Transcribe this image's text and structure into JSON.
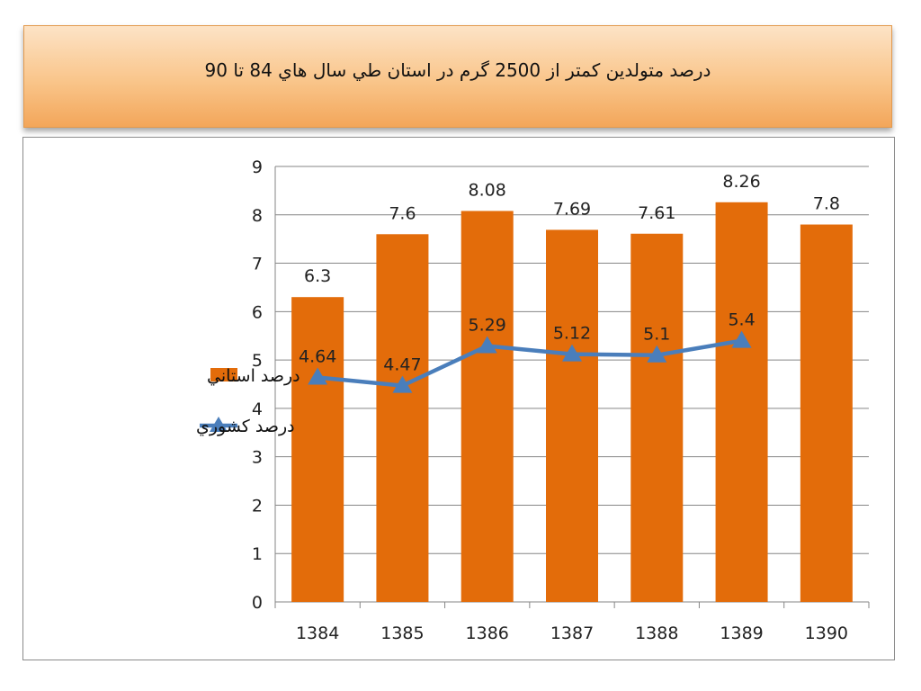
{
  "title": "درصد متولدين كمتر از 2500 گرم در استان طي سال هاي 84 تا 90",
  "colors": {
    "bar": "#e36c0a",
    "line": "#4a7ebb",
    "grid": "#868686",
    "axis": "#868686"
  },
  "chart_data": {
    "type": "bar",
    "categories": [
      "1384",
      "1385",
      "1386",
      "1387",
      "1388",
      "1389",
      "1390"
    ],
    "ylim": [
      0,
      9
    ],
    "yticks": [
      0,
      1,
      2,
      3,
      4,
      5,
      6,
      7,
      8,
      9
    ],
    "grid": true,
    "legend_position": "left",
    "series": [
      {
        "name": "درصد استاني",
        "type": "bar",
        "values": [
          6.3,
          7.6,
          8.08,
          7.69,
          7.61,
          8.26,
          7.8
        ],
        "labels": [
          "6.3",
          "7.6",
          "8.08",
          "7.69",
          "7.61",
          "8.26",
          "7.8"
        ]
      },
      {
        "name": "درصد كشوري",
        "type": "line",
        "marker": "triangle",
        "values": [
          4.64,
          4.47,
          5.29,
          5.12,
          5.1,
          5.4,
          null
        ],
        "labels": [
          "4.64",
          "4.47",
          "5.29",
          "5.12",
          "5.1",
          "5.4",
          null
        ]
      }
    ]
  }
}
